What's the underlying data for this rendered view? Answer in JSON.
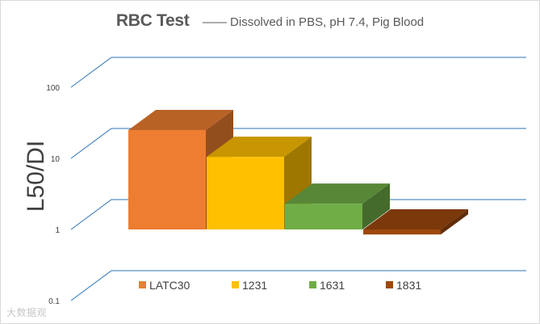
{
  "watermark": "大数据观",
  "chart_data": {
    "type": "bar",
    "style": "3d-columns",
    "title": "RBC Test",
    "subtitle": "—— Dissolved in PBS, pH 7.4,  Pig Blood",
    "ylabel": "L50/DI",
    "xlabel": "",
    "yscale": "log",
    "ylim": [
      0.1,
      100
    ],
    "yticks": [
      "0.1",
      "1",
      "10",
      "100"
    ],
    "grid": true,
    "legend": "bottom",
    "categories": [
      "LATC30",
      "1231",
      "1631",
      "1831"
    ],
    "values": [
      25,
      10.5,
      2.3,
      0.85
    ],
    "colors": [
      "#ED7D31",
      "#FFC000",
      "#70AD47",
      "#9E480E"
    ],
    "gridline_color": "#2E75B6"
  }
}
